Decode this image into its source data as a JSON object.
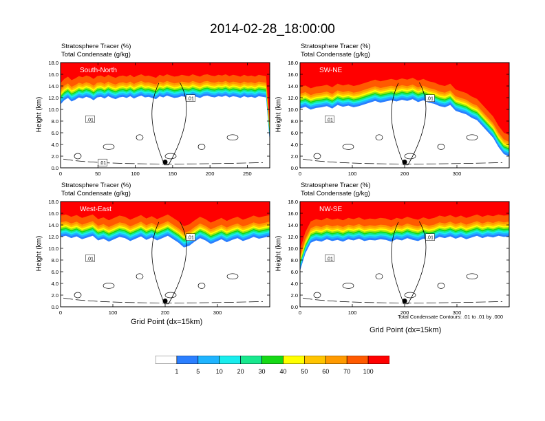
{
  "figure": {
    "title": "2014-02-28_18:00:00",
    "note": "Total Condensate Contours: .01 to .01 by .000"
  },
  "colorbar": {
    "labels": [
      "1",
      "5",
      "10",
      "20",
      "30",
      "40",
      "50",
      "60",
      "70",
      "100"
    ],
    "colors": [
      "#ffffff",
      "#2b7fff",
      "#1fb4ff",
      "#19eded",
      "#18e88e",
      "#16d916",
      "#9ee614",
      "#ffff00",
      "#ffc400",
      "#ff9a00",
      "#ff5a00",
      "#ff0000"
    ]
  },
  "chart_data": [
    {
      "type": "contour",
      "title": "Stratosphere Tracer   (%)",
      "subtitle": "Total Condensate   (g/kg)",
      "tag": "South-North",
      "ylabel": "Height (km)",
      "xlabel": "",
      "yticks": [
        "0.0",
        "2.0",
        "4.0",
        "6.0",
        "8.0",
        "10.0",
        "12.0",
        "14.0",
        "16.0",
        "18.0"
      ],
      "xticks": [
        "0",
        "50",
        "100",
        "150",
        "200",
        "250"
      ],
      "xtick_values": [
        0,
        50,
        100,
        150,
        200,
        250
      ],
      "xlim": [
        0,
        280
      ],
      "ylim": [
        0,
        18
      ],
      "tracer_base_km": [
        13.9,
        14.6,
        15.0,
        14.4,
        14.7,
        15.1,
        14.9,
        15.2,
        15.0,
        14.6,
        15.1,
        15.2,
        14.9,
        15.3,
        15.0,
        14.8,
        15.1,
        15.2,
        15.0,
        15.3,
        14.9,
        15.2,
        15.4,
        15.1,
        15.2,
        15.0,
        14.8,
        15.3,
        15.1,
        15.4,
        15.2,
        15.0,
        15.1,
        15.3,
        15.2,
        15.1,
        15.4,
        15.2,
        15.0,
        15.3,
        15.4,
        15.2,
        15.1,
        15.3,
        15.2,
        15.4,
        15.1,
        15.3,
        15.2,
        15.0,
        15.3,
        15.1,
        15.2,
        15.0,
        15.3,
        15.2,
        15.1,
        7.5
      ],
      "contour_labels": [
        ".01",
        ".01",
        ".01"
      ]
    },
    {
      "type": "contour",
      "title": "Stratosphere Tracer   (%)",
      "subtitle": "Total Condensate   (g/kg)",
      "tag": "SW-NE",
      "ylabel": "Height (km)",
      "xlabel": "",
      "yticks": [
        "0.0",
        "2.0",
        "4.0",
        "6.0",
        "8.0",
        "10.0",
        "12.0",
        "14.0",
        "16.0",
        "18.0"
      ],
      "xticks": [
        "0",
        "100",
        "200",
        "300"
      ],
      "xtick_values": [
        0,
        100,
        200,
        300
      ],
      "xlim": [
        0,
        400
      ],
      "ylim": [
        0,
        18
      ],
      "tracer_base_km": [
        13.2,
        13.5,
        13.0,
        13.3,
        13.4,
        13.6,
        13.2,
        13.8,
        13.5,
        13.7,
        13.4,
        13.6,
        13.9,
        14.2,
        14.5,
        14.2,
        14.4,
        14.6,
        14.4,
        14.7,
        14.5,
        14.8,
        14.3,
        14.6,
        14.2,
        14.0,
        13.6,
        13.4,
        13.8,
        12.8,
        12.5,
        12.2,
        11.6,
        11.2,
        10.2,
        9.2,
        8.2,
        6.6,
        5.4,
        5.0
      ],
      "contour_labels": [
        ".01",
        ".01"
      ]
    },
    {
      "type": "contour",
      "title": "Stratosphere Tracer   (%)",
      "subtitle": "Total Condensate   (g/kg)",
      "tag": "West-East",
      "ylabel": "Height (km)",
      "xlabel": "Grid Point (dx=15km)",
      "yticks": [
        "0.0",
        "2.0",
        "4.0",
        "6.0",
        "8.0",
        "10.0",
        "12.0",
        "14.0",
        "16.0",
        "18.0"
      ],
      "xticks": [
        "0",
        "100",
        "200",
        "300"
      ],
      "xtick_values": [
        0,
        100,
        200,
        300
      ],
      "xlim": [
        0,
        400
      ],
      "ylim": [
        0,
        18
      ],
      "tracer_base_km": [
        15.0,
        15.2,
        14.8,
        15.1,
        14.6,
        14.9,
        15.2,
        14.4,
        14.7,
        14.2,
        14.6,
        15.0,
        14.8,
        14.3,
        14.7,
        15.1,
        14.5,
        14.9,
        14.4,
        14.8,
        15.2,
        14.6,
        14.0,
        13.2,
        13.5,
        14.2,
        14.8,
        14.4,
        13.8,
        14.2,
        14.6,
        14.1,
        14.5,
        14.8,
        14.3,
        14.6,
        15.0,
        14.7,
        14.9,
        15.1
      ],
      "contour_labels": [
        ".01",
        ".01"
      ]
    },
    {
      "type": "contour",
      "title": "Stratosphere Tracer   (%)",
      "subtitle": "Total Condensate   (g/kg)",
      "tag": "NW-SE",
      "ylabel": "Height (km)",
      "xlabel": "Grid Point (dx=15km)",
      "yticks": [
        "0.0",
        "2.0",
        "4.0",
        "6.0",
        "8.0",
        "10.0",
        "12.0",
        "14.0",
        "16.0",
        "18.0"
      ],
      "xticks": [
        "0",
        "100",
        "200",
        "300"
      ],
      "xtick_values": [
        0,
        100,
        200,
        300
      ],
      "xlim": [
        0,
        400
      ],
      "ylim": [
        0,
        18
      ],
      "tracer_base_km": [
        9.2,
        12.2,
        14.0,
        14.4,
        14.2,
        14.6,
        14.3,
        14.5,
        14.2,
        14.6,
        14.4,
        14.7,
        14.3,
        14.5,
        14.4,
        14.6,
        14.5,
        14.2,
        14.6,
        14.4,
        14.8,
        14.5,
        14.3,
        14.7,
        14.4,
        14.6,
        15.0,
        14.8,
        15.1,
        14.7,
        15.0,
        14.6,
        14.9,
        15.2,
        14.8,
        15.1,
        14.9,
        15.2,
        15.0,
        15.1
      ],
      "contour_labels": [
        ".01",
        ".01"
      ]
    }
  ]
}
